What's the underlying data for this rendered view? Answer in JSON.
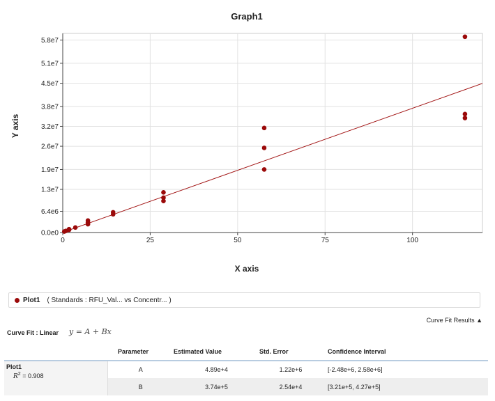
{
  "chart_data": {
    "type": "scatter",
    "title": "Graph1",
    "xlabel": "X axis",
    "ylabel": "Y axis",
    "xlim": [
      0,
      120
    ],
    "ylim": [
      0,
      60000000
    ],
    "xticks": [
      0,
      25,
      50,
      75,
      100
    ],
    "yticks": [
      {
        "value": 0,
        "label": "0.0e0"
      },
      {
        "value": 6400000,
        "label": "6.4e6"
      },
      {
        "value": 13000000,
        "label": "1.3e7"
      },
      {
        "value": 19000000,
        "label": "1.9e7"
      },
      {
        "value": 26000000,
        "label": "2.6e7"
      },
      {
        "value": 32000000,
        "label": "3.2e7"
      },
      {
        "value": 38000000,
        "label": "3.8e7"
      },
      {
        "value": 45000000,
        "label": "4.5e7"
      },
      {
        "value": 51000000,
        "label": "5.1e7"
      },
      {
        "value": 58000000,
        "label": "5.8e7"
      }
    ],
    "grid": true,
    "series": [
      {
        "name": "Plot1",
        "color": "#9b0a0a",
        "x": [
          0.45,
          0.9,
          1.8,
          1.8,
          3.6,
          7.2,
          7.2,
          7.2,
          14.4,
          14.4,
          28.8,
          28.8,
          28.8,
          57.6,
          57.6,
          57.6,
          115,
          115,
          115
        ],
        "y": [
          300000,
          500000,
          800000,
          1000000,
          1500000,
          2500000,
          3000000,
          3600000,
          5500000,
          6100000,
          9500000,
          10500000,
          12100000,
          19000000,
          25500000,
          31500000,
          34500000,
          35700000,
          59000000
        ]
      }
    ],
    "fit": {
      "type": "linear",
      "A": 48900,
      "B": 374000,
      "color": "#a01010"
    }
  },
  "legend": {
    "plot_name": "Plot1",
    "description": "( Standards : RFU_Val...   vs  Concentr...  )",
    "dot_color": "#9b0a0a"
  },
  "curve_fit": {
    "results_toggle": "Curve Fit Results ▲",
    "label": "Curve Fit : Linear",
    "formula": "y = A + Bx",
    "table": {
      "headers": [
        "Parameter",
        "Estimated Value",
        "Std. Error",
        "Confidence Interval"
      ],
      "plot_name": "Plot1",
      "r2_symbol": "R",
      "r2_sup": "2",
      "r2_value": " = 0.908",
      "rows": [
        {
          "param": "A",
          "value": "4.89e+4",
          "error": "1.22e+6",
          "ci": "[-2.48e+6, 2.58e+6]"
        },
        {
          "param": "B",
          "value": "3.74e+5",
          "error": "2.54e+4",
          "ci": "[3.21e+5, 4.27e+5]"
        }
      ]
    }
  }
}
